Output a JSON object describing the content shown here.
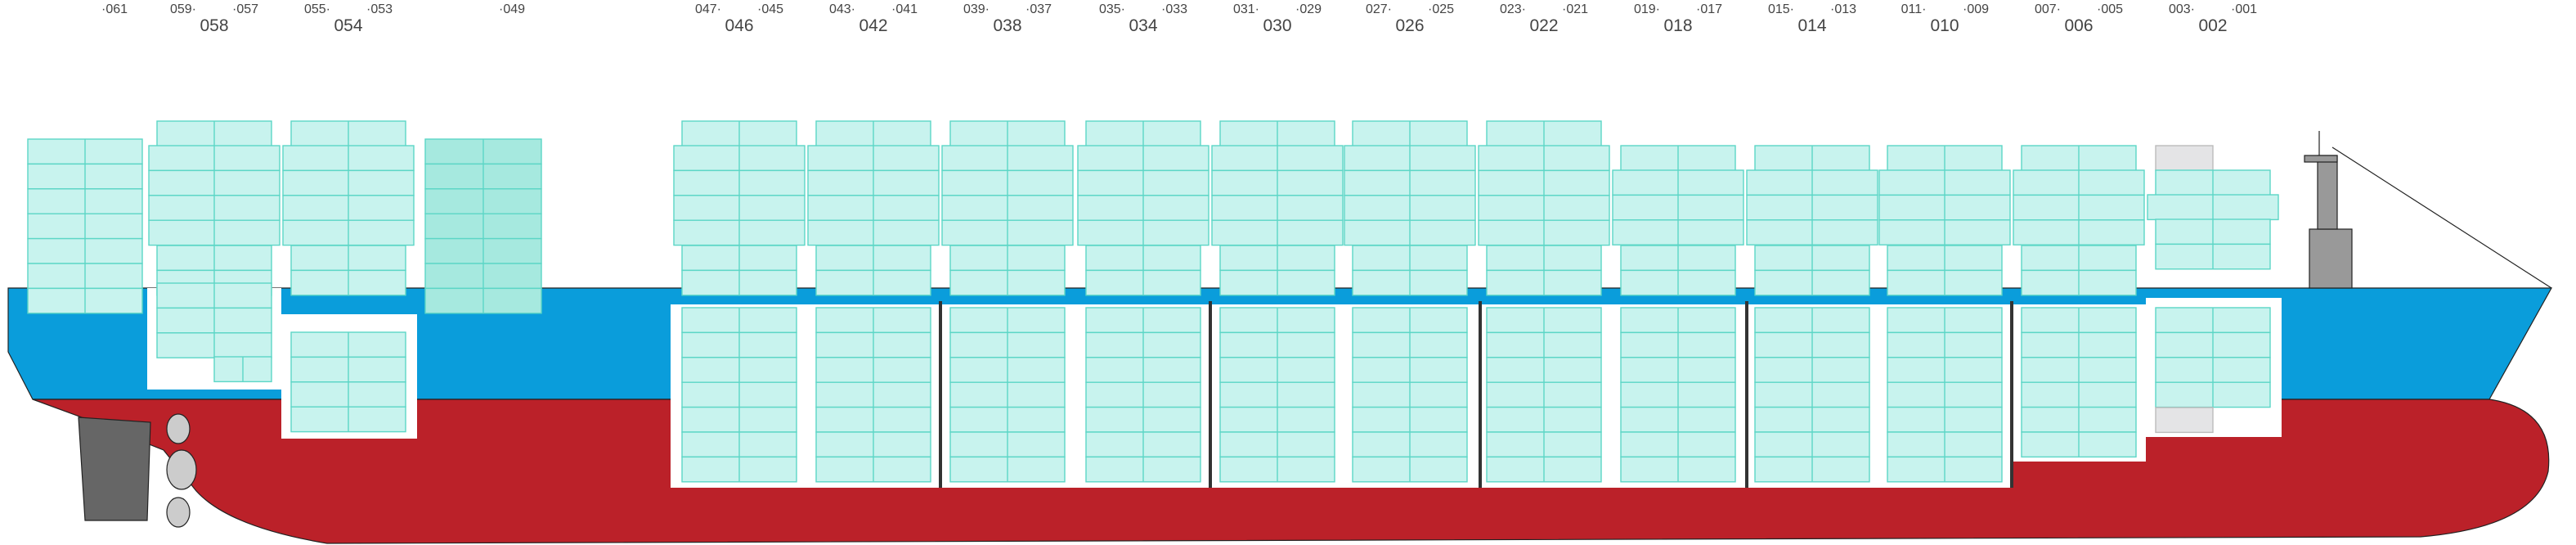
{
  "single_bays": [
    "·061",
    "·049"
  ],
  "bays": [
    {
      "left": "059·",
      "center": "058",
      "right": "·057"
    },
    {
      "left": "055·",
      "center": "054",
      "right": "·053"
    },
    {
      "left": "047·",
      "center": "046",
      "right": "·045"
    },
    {
      "left": "043·",
      "center": "042",
      "right": "·041"
    },
    {
      "left": "039·",
      "center": "038",
      "right": "·037"
    },
    {
      "left": "035·",
      "center": "034",
      "right": "·033"
    },
    {
      "left": "031·",
      "center": "030",
      "right": "·029"
    },
    {
      "left": "027·",
      "center": "026",
      "right": "·025"
    },
    {
      "left": "023·",
      "center": "022",
      "right": "·021"
    },
    {
      "left": "019·",
      "center": "018",
      "right": "·017"
    },
    {
      "left": "015·",
      "center": "014",
      "right": "·013"
    },
    {
      "left": "011·",
      "center": "010",
      "right": "·009"
    },
    {
      "left": "007·",
      "center": "006",
      "right": "·005"
    },
    {
      "left": "003·",
      "center": "002",
      "right": "·001"
    }
  ]
}
